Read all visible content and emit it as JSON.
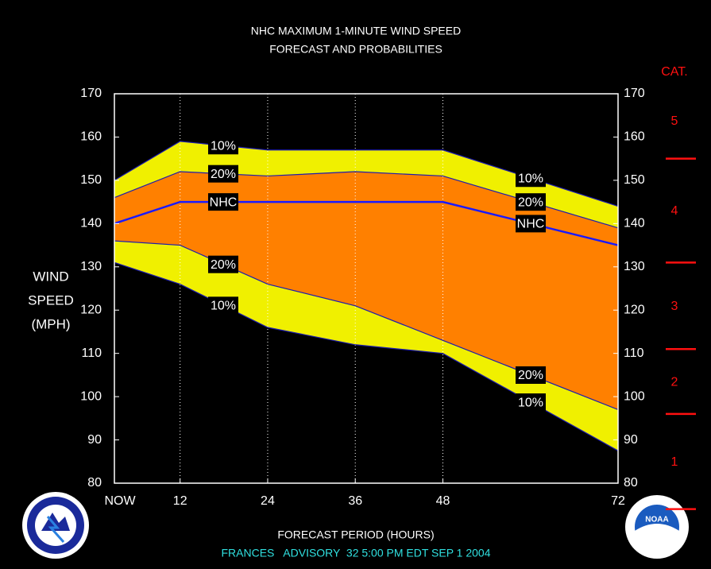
{
  "chart_data": {
    "type": "band",
    "title": "NHC MAXIMUM 1-MINUTE WIND SPEED",
    "subtitle": "FORECAST AND PROBABILITIES",
    "ylabel": [
      "WIND",
      "SPEED",
      "(MPH)"
    ],
    "xlabel": "FORECAST PERIOD (HOURS)",
    "footer": "FRANCES   ADVISORY  32 5:00 PM EDT SEP 1 2004",
    "x": [
      3,
      12,
      24,
      36,
      48,
      72
    ],
    "xlim": [
      3,
      72
    ],
    "xticks": [
      {
        "value": 3,
        "label": "NOW"
      },
      12,
      24,
      36,
      48,
      72
    ],
    "ylim": [
      80,
      170
    ],
    "yticks": [
      80,
      90,
      100,
      110,
      120,
      130,
      140,
      150,
      160,
      170
    ],
    "grid": true,
    "series": [
      {
        "name": "10%",
        "color": "#1c1cb0",
        "fill": "#f0f000",
        "values": [
          150,
          159,
          157,
          157,
          157,
          144
        ]
      },
      {
        "name": "20%",
        "color": "#1c1cb0",
        "fill": "#ff8000",
        "values": [
          146,
          152,
          151,
          152,
          151,
          139
        ]
      },
      {
        "name": "NHC",
        "color": "#1a1aff",
        "values": [
          140,
          145,
          145,
          145,
          145,
          135
        ]
      },
      {
        "name": "20%",
        "color": "#1c1cb0",
        "values": [
          136,
          135,
          126,
          121,
          113,
          97
        ]
      },
      {
        "name": "10%",
        "color": "#1c1cb0",
        "values": [
          131,
          126,
          116,
          112,
          110,
          87.5
        ]
      }
    ],
    "category_scale": {
      "title": "CAT.",
      "color": "#ff1010",
      "thresholds": [
        74,
        96,
        111,
        131,
        155
      ],
      "labels": [
        "1",
        "2",
        "3",
        "4",
        "5"
      ]
    },
    "logo_text": "NOAA"
  }
}
